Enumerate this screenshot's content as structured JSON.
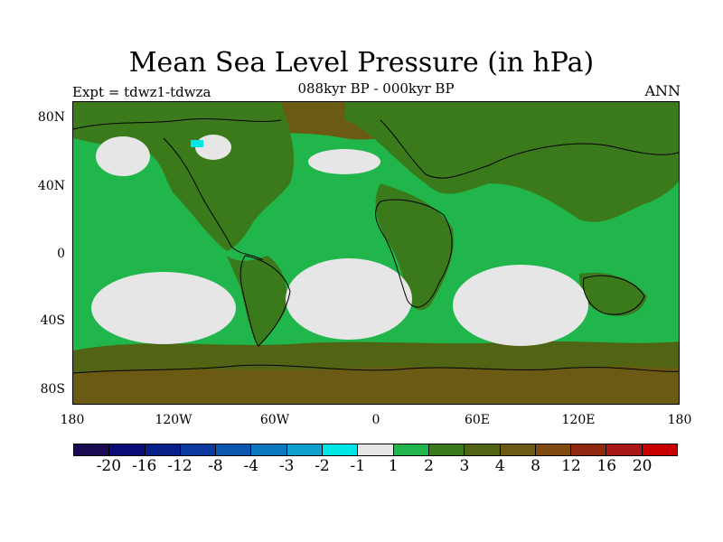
{
  "title": "Mean Sea Level Pressure (in hPa)",
  "experiment": "Expt = tdwz1-tdwza",
  "period": "088kyr BP - 000kyr BP",
  "season": "ANN",
  "colors": {
    "land_mid": "#3b7a1a",
    "brown": "#6b5a14",
    "ocean_green": "#21b64b",
    "pale": "#e6e6e6",
    "cyan": "#00e5e5",
    "coast": "#000000"
  },
  "lat_ticks": [
    "80N",
    "40N",
    "0",
    "40S",
    "80S"
  ],
  "lon_ticks": [
    "180",
    "120W",
    "60W",
    "0",
    "60E",
    "120E",
    "180"
  ],
  "colorbar": {
    "colors": [
      "#1a0a52",
      "#0a0a78",
      "#08208a",
      "#0a3aa0",
      "#0c58b0",
      "#0c78c0",
      "#10a0d0",
      "#00e5e5",
      "#e6e6e6",
      "#21b64b",
      "#3b7a1a",
      "#506414",
      "#6b5a14",
      "#804a10",
      "#902810",
      "#a81818",
      "#c80000"
    ],
    "labels": [
      "-20",
      "-16",
      "-12",
      "-8",
      "-4",
      "-3",
      "-2",
      "-1",
      "1",
      "2",
      "3",
      "4",
      "8",
      "12",
      "16",
      "20"
    ]
  }
}
